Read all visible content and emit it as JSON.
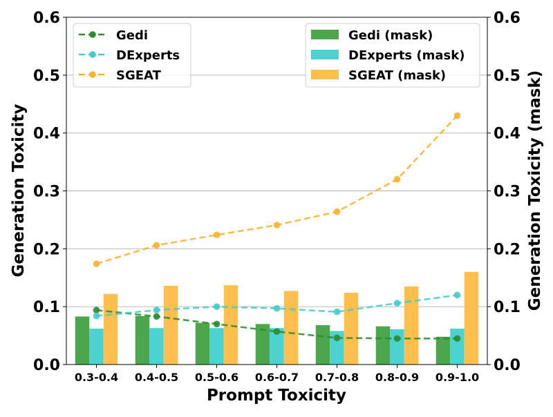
{
  "chart_data": {
    "type": "bar",
    "xlabel": "Prompt Toxicity",
    "ylabel": "Generation Toxicity",
    "ylabel_right": "Generation Toxicity (mask)",
    "ylim": [
      0,
      0.6
    ],
    "yticks": [
      "0.0",
      "0.1",
      "0.2",
      "0.3",
      "0.4",
      "0.5",
      "0.6"
    ],
    "grid": "horizontal",
    "categories": [
      "0.3-0.4",
      "0.4-0.5",
      "0.5-0.6",
      "0.6-0.7",
      "0.7-0.8",
      "0.8-0.9",
      "0.9-1.0"
    ],
    "bar_series": [
      {
        "name": "Gedi (mask)",
        "color": "#4ca64c",
        "values": [
          0.083,
          0.084,
          0.072,
          0.07,
          0.068,
          0.066,
          0.048
        ]
      },
      {
        "name": "DExperts (mask)",
        "color": "#4dd2d2",
        "values": [
          0.062,
          0.063,
          0.063,
          0.063,
          0.058,
          0.061,
          0.062
        ]
      },
      {
        "name": "SGEAT (mask)",
        "color": "#ffbf4d",
        "values": [
          0.122,
          0.136,
          0.137,
          0.127,
          0.124,
          0.135,
          0.16
        ]
      }
    ],
    "line_series": [
      {
        "name": "Gedi",
        "color": "#2d8a2d",
        "values": [
          0.094,
          0.083,
          0.07,
          0.057,
          0.046,
          0.045,
          0.045
        ]
      },
      {
        "name": "DExperts",
        "color": "#40cccc",
        "values": [
          0.084,
          0.094,
          0.1,
          0.097,
          0.091,
          0.106,
          0.12
        ]
      },
      {
        "name": "SGEAT",
        "color": "#f7b32b",
        "values": [
          0.174,
          0.206,
          0.224,
          0.241,
          0.264,
          0.32,
          0.43
        ]
      }
    ],
    "legend_lines_position": "top-left",
    "legend_bars_position": "top-right"
  }
}
